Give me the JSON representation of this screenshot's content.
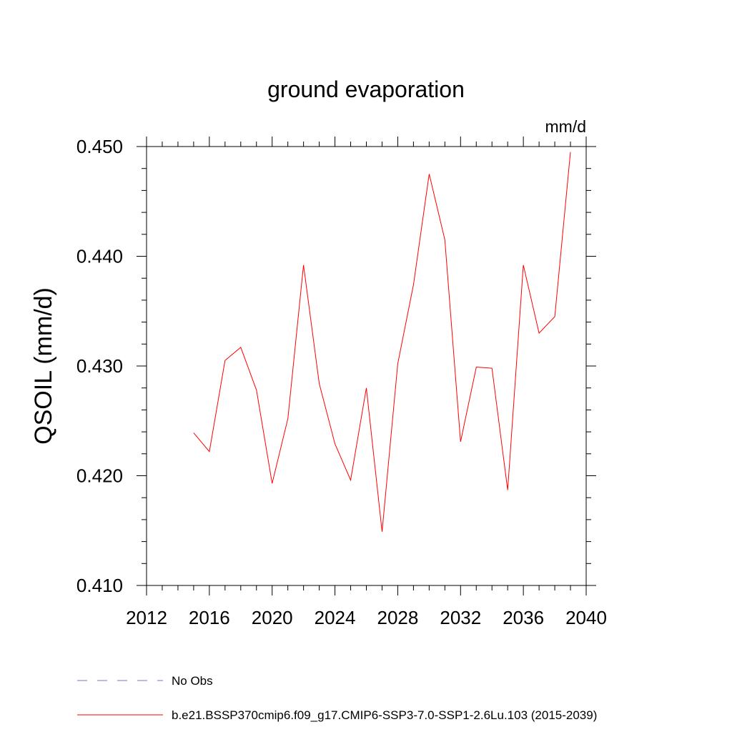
{
  "chart_data": {
    "type": "line",
    "title": "ground evaporation",
    "units": "mm/d",
    "ylabel": "QSOIL  (mm/d)",
    "xlabel": "",
    "xlim": [
      2012,
      2040
    ],
    "ylim": [
      0.41,
      0.45
    ],
    "x_ticks": [
      "2012",
      "2016",
      "2020",
      "2024",
      "2028",
      "2032",
      "2036",
      "2040"
    ],
    "y_ticks": [
      "0.410",
      "0.420",
      "0.430",
      "0.440",
      "0.450"
    ],
    "grid": false,
    "legend_position": "bottom",
    "series": [
      {
        "name": "b.e21.BSSP370cmip6.f09_g17.CMIP6-SSP3-7.0-SSP1-2.6Lu.103 (2015-2039)",
        "color": "#ff0000",
        "style": "solid",
        "x": [
          2015,
          2016,
          2017,
          2018,
          2019,
          2020,
          2021,
          2022,
          2023,
          2024,
          2025,
          2026,
          2027,
          2028,
          2029,
          2030,
          2031,
          2032,
          2033,
          2034,
          2035,
          2036,
          2037,
          2038,
          2039
        ],
        "y": [
          0.4239,
          0.4222,
          0.4305,
          0.4317,
          0.4278,
          0.4193,
          0.4252,
          0.4392,
          0.4284,
          0.4229,
          0.4196,
          0.428,
          0.4149,
          0.4302,
          0.4374,
          0.4475,
          0.4415,
          0.4231,
          0.4299,
          0.4298,
          0.4187,
          0.4392,
          0.433,
          0.4345,
          0.4495
        ]
      }
    ],
    "legend": [
      {
        "label": "No Obs",
        "color": "#7f6fbf",
        "style": "dashed"
      },
      {
        "label": "b.e21.BSSP370cmip6.f09_g17.CMIP6-SSP3-7.0-SSP1-2.6Lu.103 (2015-2039)",
        "color": "#ff0000",
        "style": "solid"
      }
    ]
  }
}
